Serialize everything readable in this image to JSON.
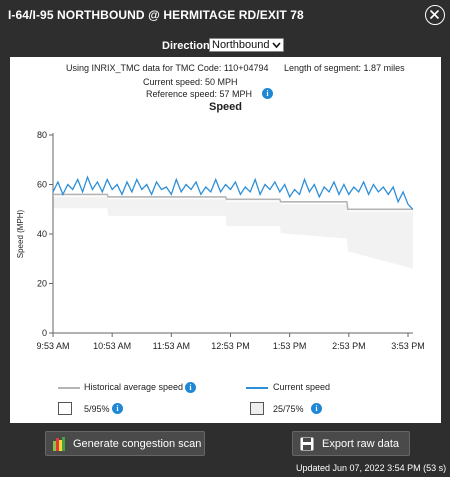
{
  "window": {
    "title": "I-64/I-95 NORTHBOUND @ HERMITAGE RD/EXIT 78"
  },
  "direction": {
    "label": "Direction",
    "selected": "Northbound"
  },
  "info": {
    "source_text": "Using INRIX_TMC data for TMC Code: 110+04794",
    "segment_length": "Length of segment: 1.87 miles",
    "current_speed": "Current speed:   50 MPH",
    "reference_speed": "Reference speed:   57 MPH"
  },
  "legend": {
    "historical": "Historical average speed",
    "current": "Current speed",
    "band_5_95": "5/95%",
    "band_25_75": "25/75%"
  },
  "buttons": {
    "congestion": "Generate congestion scan",
    "export": "Export raw data"
  },
  "status": {
    "updated": "Updated Jun 07, 2022 3:54 PM (53 s)"
  },
  "colors": {
    "current_speed": "#2e8fd8",
    "historical": "#b5b5b5",
    "band": "#f2f2f2",
    "info_icon": "#1e88d6"
  },
  "chart_data": {
    "type": "line",
    "title": "Speed",
    "ylabel": "Speed (MPH)",
    "xlabel": "",
    "ylim": [
      0,
      80
    ],
    "yticks": [
      0,
      20,
      40,
      60,
      80
    ],
    "xlim": [
      0,
      360
    ],
    "xticks": [
      {
        "t": 0,
        "label": "9:53 AM"
      },
      {
        "t": 60,
        "label": "10:53 AM"
      },
      {
        "t": 120,
        "label": "11:53 AM"
      },
      {
        "t": 180,
        "label": "12:53 PM"
      },
      {
        "t": 240,
        "label": "1:53 PM"
      },
      {
        "t": 300,
        "label": "2:53 PM"
      },
      {
        "t": 360,
        "label": "3:53 PM"
      }
    ],
    "series": [
      {
        "name": "Historical average speed",
        "x": [
          0,
          55,
          56,
          175,
          176,
          230,
          231,
          298,
          299,
          365
        ],
        "values": [
          56,
          56,
          55,
          55,
          54,
          54,
          53,
          53,
          50,
          50
        ]
      },
      {
        "name": "Current speed",
        "x": [
          0,
          5,
          10,
          15,
          20,
          25,
          30,
          35,
          40,
          45,
          50,
          55,
          60,
          65,
          70,
          75,
          80,
          85,
          90,
          95,
          100,
          105,
          110,
          115,
          120,
          125,
          130,
          135,
          140,
          145,
          150,
          155,
          160,
          165,
          170,
          175,
          180,
          185,
          190,
          195,
          200,
          205,
          210,
          215,
          220,
          225,
          230,
          235,
          240,
          245,
          250,
          255,
          260,
          265,
          270,
          275,
          280,
          285,
          290,
          295,
          300,
          305,
          310,
          315,
          320,
          325,
          330,
          335,
          340,
          345,
          350,
          355,
          360,
          365
        ],
        "values": [
          57,
          61,
          56,
          60,
          58,
          62,
          57,
          63,
          58,
          61,
          57,
          62,
          58,
          60,
          56,
          61,
          57,
          62,
          58,
          60,
          56,
          61,
          58,
          59,
          56,
          62,
          57,
          60,
          58,
          61,
          56,
          59,
          57,
          62,
          57,
          60,
          58,
          61,
          56,
          59,
          57,
          62,
          56,
          60,
          58,
          61,
          57,
          60,
          55,
          58,
          56,
          62,
          57,
          60,
          55,
          59,
          57,
          61,
          56,
          60,
          56,
          59,
          57,
          61,
          56,
          60,
          57,
          59,
          56,
          59,
          53,
          57,
          52,
          50
        ]
      }
    ]
  }
}
